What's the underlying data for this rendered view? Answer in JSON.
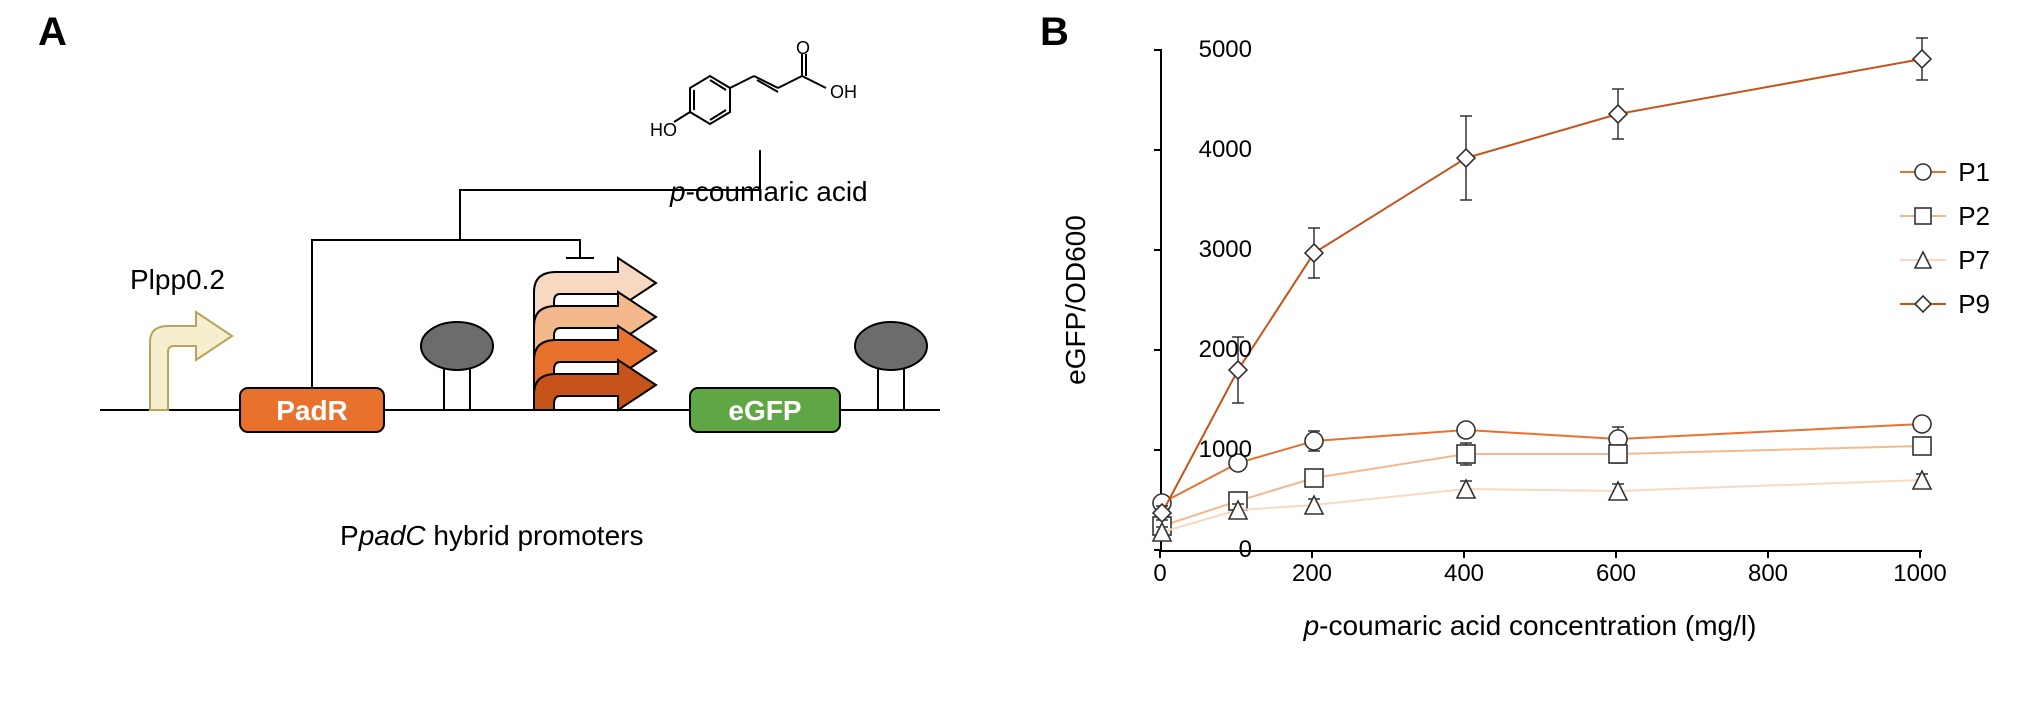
{
  "panelA": {
    "label": "A",
    "plpp": "Plpp0.2",
    "padR": "PadR",
    "eGFP": "eGFP",
    "pcoumaric": "p-coumaric acid",
    "caption": "PpadC hybrid promoters",
    "molecule": {
      "hoLabel": "HO",
      "ohLabel": "OH",
      "oLabel": "O"
    },
    "colors": {
      "padR_fill": "#e8722d",
      "eGFP_fill": "#5fa644",
      "term_fill": "#6c6c6c",
      "plpp_fill": "#f5efcf",
      "plpp_stroke": "#b7a55b",
      "arrow1": "#f7d9c2",
      "arrow2": "#f3b98d",
      "arrow3": "#e8722d",
      "arrow4": "#c5531a"
    }
  },
  "panelB": {
    "label": "B",
    "ylabel": "eGFP/OD600",
    "xlabel_pre": "p",
    "xlabel_post": "-coumaric acid concentration (mg/l)",
    "xlim": [
      0,
      1000
    ],
    "ylim": [
      0,
      5000
    ],
    "xticks": [
      0,
      200,
      400,
      600,
      800,
      1000
    ],
    "yticks": [
      0,
      1000,
      2000,
      3000,
      4000,
      5000
    ],
    "line_width": 2,
    "marker_size": 9,
    "marker_stroke": "#333333",
    "marker_fill": "#ffffff",
    "error_bar_color": "#333333",
    "series": [
      {
        "id": "P1",
        "marker": "circle",
        "color": "#e8722d",
        "x": [
          0,
          100,
          200,
          400,
          600,
          1000
        ],
        "y": [
          470,
          870,
          1090,
          1200,
          1110,
          1260
        ],
        "err": [
          60,
          60,
          100,
          70,
          120,
          70
        ]
      },
      {
        "id": "P2",
        "marker": "square",
        "color": "#f3b98d",
        "x": [
          0,
          100,
          200,
          400,
          600,
          1000
        ],
        "y": [
          240,
          490,
          720,
          960,
          960,
          1040
        ],
        "err": [
          60,
          70,
          70,
          110,
          90,
          60
        ]
      },
      {
        "id": "P7",
        "marker": "triangle",
        "color": "#f7d9c2",
        "x": [
          0,
          100,
          200,
          400,
          600,
          1000
        ],
        "y": [
          180,
          400,
          450,
          610,
          590,
          700
        ],
        "err": [
          50,
          60,
          60,
          80,
          70,
          60
        ]
      },
      {
        "id": "P9",
        "marker": "diamond",
        "color": "#c5531a",
        "x": [
          0,
          100,
          200,
          400,
          600,
          1000
        ],
        "y": [
          370,
          1800,
          2970,
          3920,
          4360,
          4910
        ],
        "err": [
          70,
          330,
          250,
          420,
          250,
          210
        ]
      }
    ],
    "legend": [
      {
        "id": "P1",
        "marker": "circle",
        "color": "#e8722d"
      },
      {
        "id": "P2",
        "marker": "square",
        "color": "#f3b98d"
      },
      {
        "id": "P7",
        "marker": "triangle",
        "color": "#f7d9c2"
      },
      {
        "id": "P9",
        "marker": "diamond",
        "color": "#c5531a"
      }
    ]
  }
}
